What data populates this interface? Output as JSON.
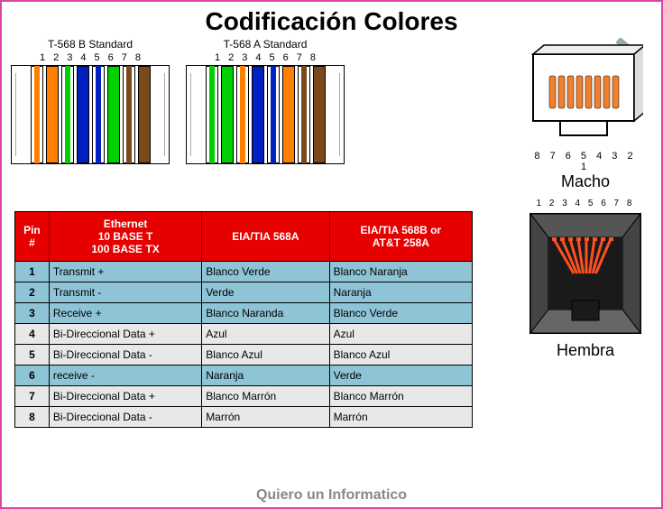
{
  "title": "Codificación Colores",
  "footer": "Quiero un Informatico",
  "colors": {
    "white": "#ffffff",
    "orange": "#ff7f00",
    "green": "#00d000",
    "blue": "#0020c0",
    "brown": "#7a4a1a",
    "black": "#000000",
    "header_bg": "#e60000",
    "row_blue": "#8ec4d6",
    "row_gray": "#e8e8e8",
    "macho_pin": "#f08030"
  },
  "standards": [
    {
      "label": "T-568 B Standard",
      "pins": [
        "1",
        "2",
        "3",
        "4",
        "5",
        "6",
        "7",
        "8"
      ],
      "wires": [
        {
          "base": "#ffffff",
          "stripe": "#ff7f00"
        },
        {
          "base": "#ff7f00",
          "stripe": null
        },
        {
          "base": "#ffffff",
          "stripe": "#00d000"
        },
        {
          "base": "#0020c0",
          "stripe": null
        },
        {
          "base": "#ffffff",
          "stripe": "#0020c0"
        },
        {
          "base": "#00d000",
          "stripe": null
        },
        {
          "base": "#ffffff",
          "stripe": "#7a4a1a"
        },
        {
          "base": "#7a4a1a",
          "stripe": null
        }
      ]
    },
    {
      "label": "T-568 A Standard",
      "pins": [
        "1",
        "2",
        "3",
        "4",
        "5",
        "6",
        "7",
        "8"
      ],
      "wires": [
        {
          "base": "#ffffff",
          "stripe": "#00d000"
        },
        {
          "base": "#00d000",
          "stripe": null
        },
        {
          "base": "#ffffff",
          "stripe": "#ff7f00"
        },
        {
          "base": "#0020c0",
          "stripe": null
        },
        {
          "base": "#ffffff",
          "stripe": "#0020c0"
        },
        {
          "base": "#ff7f00",
          "stripe": null
        },
        {
          "base": "#ffffff",
          "stripe": "#7a4a1a"
        },
        {
          "base": "#7a4a1a",
          "stripe": null
        }
      ]
    }
  ],
  "macho": {
    "label": "Macho",
    "pins_reversed": "8 7 6 5 4 3 2 1"
  },
  "hembra": {
    "label": "Hembra",
    "pins": "1  2  3  4  5  6  7  8"
  },
  "table": {
    "headers": {
      "pin": "Pin\n#",
      "eth1": "Ethernet",
      "eth2": "10 BASE T",
      "eth3": "100 BASE TX",
      "a": "EIA/TIA 568A",
      "b1": "EIA/TIA 568B or",
      "b2": "AT&T 258A"
    },
    "rows": [
      {
        "n": "1",
        "eth": "Transmit +",
        "a": "Blanco Verde",
        "b": "Blanco Naranja",
        "hl": true
      },
      {
        "n": "2",
        "eth": "Transmit -",
        "a": "Verde",
        "b": "Naranja",
        "hl": true
      },
      {
        "n": "3",
        "eth": "Receive +",
        "a": "Blanco Naranda",
        "b": "Blanco Verde",
        "hl": true
      },
      {
        "n": "4",
        "eth": "Bi-Direccional Data +",
        "a": "Azul",
        "b": "Azul",
        "hl": false
      },
      {
        "n": "5",
        "eth": "Bi-Direccional Data -",
        "a": "Blanco Azul",
        "b": "Blanco Azul",
        "hl": false
      },
      {
        "n": "6",
        "eth": "receive -",
        "a": "Naranja",
        "b": "Verde",
        "hl": true
      },
      {
        "n": "7",
        "eth": "Bi-Direccional Data +",
        "a": "Blanco Marrón",
        "b": "Blanco Marrón",
        "hl": false
      },
      {
        "n": "8",
        "eth": "Bi-Direccional Data -",
        "a": "Marrón",
        "b": "Marrón",
        "hl": false
      }
    ]
  }
}
